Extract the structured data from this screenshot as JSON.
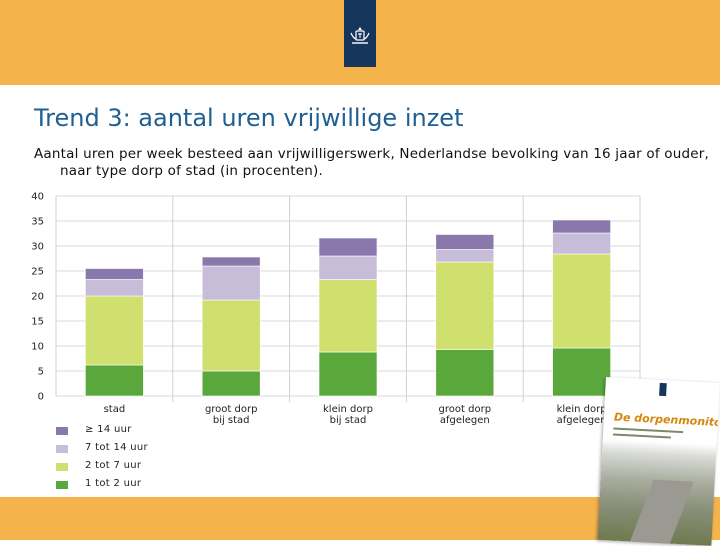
{
  "slide": {
    "title": "Trend 3: aantal uren vrijwillige inzet",
    "subtitle": "Aantal uren per week besteed aan vrijwilligerswerk, Nederlandse bevolking van 16 jaar of ouder, naar type dorp of stad (in procenten).",
    "report_title": "De dorpenmonitor"
  },
  "colors": {
    "band": "#f5b34c",
    "emblem": "#17365c",
    "title": "#1f5f92"
  },
  "chart_data": {
    "type": "bar",
    "stacked": true,
    "categories": [
      [
        "stad"
      ],
      [
        "groot dorp",
        "bij stad"
      ],
      [
        "klein dorp",
        "bij stad"
      ],
      [
        "groot dorp",
        "afgelegen"
      ],
      [
        "klein dorp",
        "afgelegen"
      ]
    ],
    "series": [
      {
        "name": "1 tot 2 uur",
        "color": "#5aa83c",
        "values": [
          6.2,
          5.0,
          8.8,
          9.3,
          9.6
        ]
      },
      {
        "name": "2 tot 7 uur",
        "color": "#cfe06e",
        "values": [
          13.8,
          14.2,
          14.5,
          17.5,
          18.8
        ]
      },
      {
        "name": "7 tot 14 uur",
        "color": "#c7bdd8",
        "values": [
          3.3,
          6.8,
          4.7,
          2.5,
          4.2
        ]
      },
      {
        "name": "≥ 14 uur",
        "color": "#8a78ad",
        "values": [
          2.2,
          1.8,
          3.6,
          3.0,
          2.6
        ]
      }
    ],
    "yticks": [
      0,
      5,
      10,
      15,
      20,
      25,
      30,
      35,
      40
    ],
    "ylim": [
      0,
      40
    ],
    "grid": true,
    "legend_order": [
      "≥ 14 uur",
      "7 tot 14 uur",
      "2 tot 7 uur",
      "1 tot 2 uur"
    ],
    "legend_placement": "bottom-left"
  }
}
